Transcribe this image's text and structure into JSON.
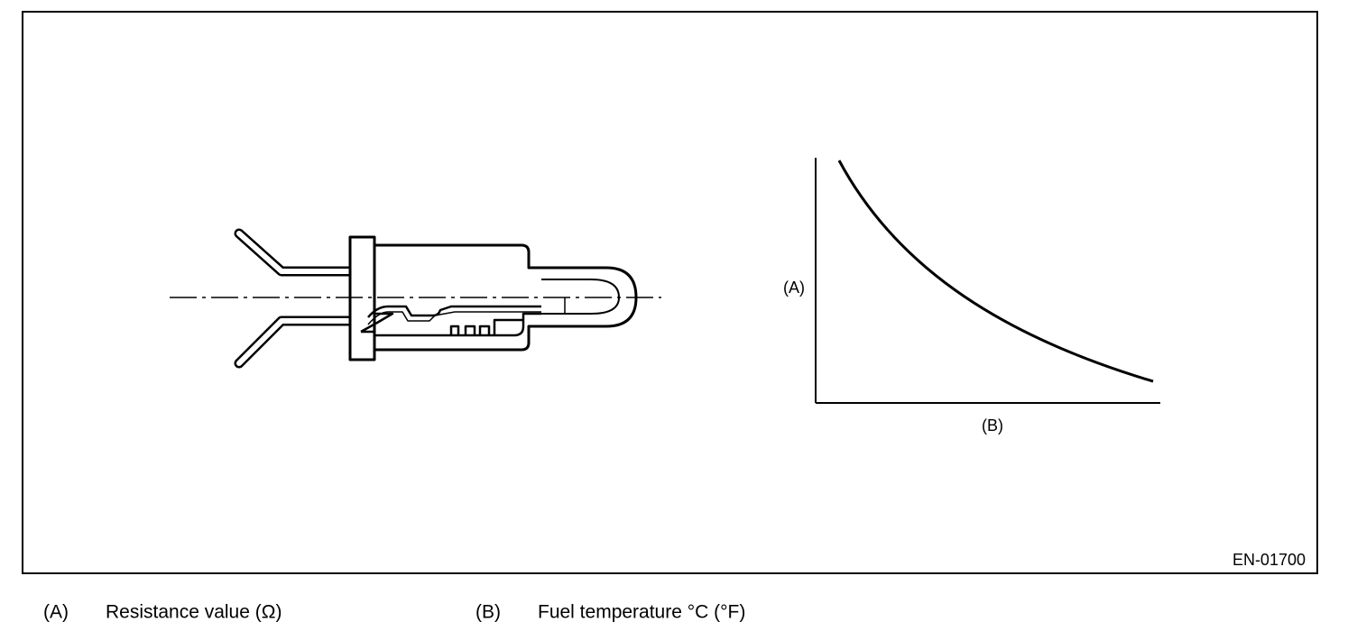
{
  "figure": {
    "labels": {
      "a": "(A)",
      "b": "(B)"
    },
    "id": "EN-01700"
  },
  "legend": [
    {
      "key": "(A)",
      "text": "Resistance value (Ω)"
    },
    {
      "key": "(B)",
      "text": "Fuel temperature °C (°F)"
    }
  ]
}
